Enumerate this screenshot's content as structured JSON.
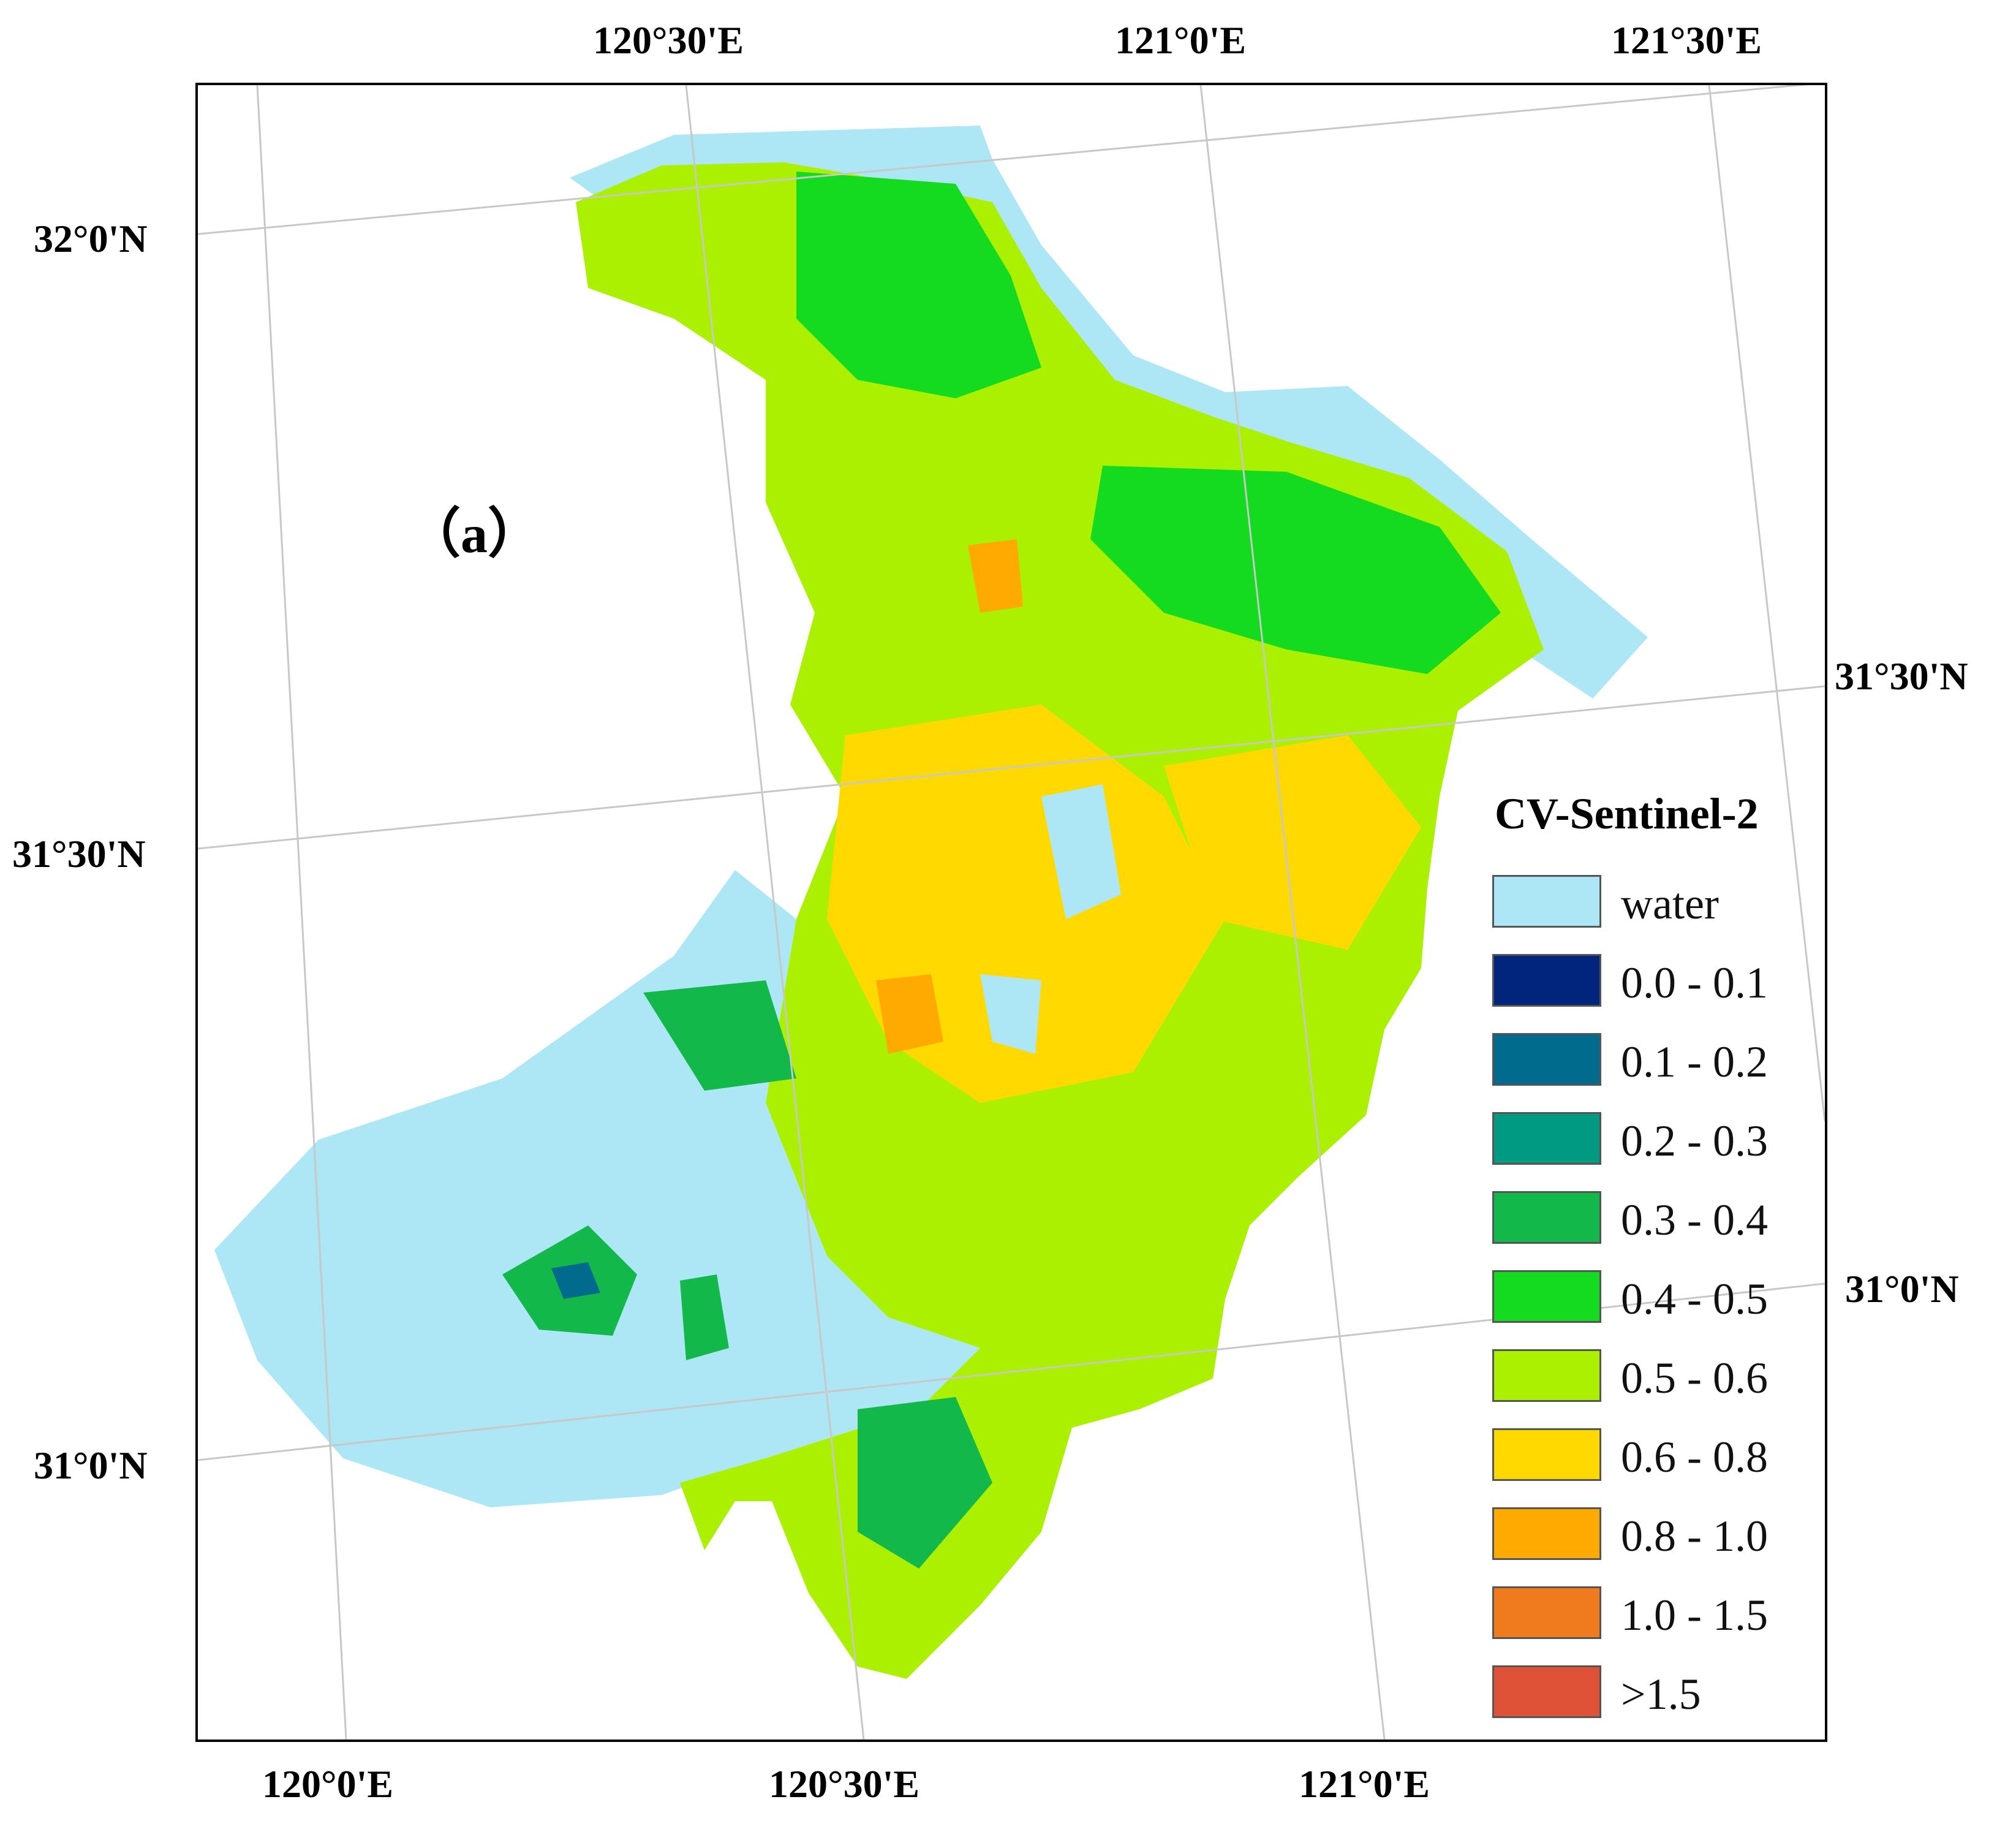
{
  "map": {
    "panel_label": "（a）",
    "top_longitudes": [
      "120°30'E",
      "121°0'E",
      "121°30'E"
    ],
    "bottom_longitudes": [
      "120°0'E",
      "120°30'E",
      "121°0'E"
    ],
    "left_latitudes": [
      "32°0'N",
      "31°30'N",
      "31°0'N"
    ],
    "right_latitudes": [
      "31°30'N",
      "31°0'N"
    ]
  },
  "legend": {
    "title": "CV-Sentinel-2",
    "items": [
      {
        "label": "water",
        "color": "#ade6f5"
      },
      {
        "label": "0.0 - 0.1",
        "color": "#00257a"
      },
      {
        "label": "0.1 - 0.2",
        "color": "#006b8c"
      },
      {
        "label": "0.2 - 0.3",
        "color": "#009a80"
      },
      {
        "label": "0.3 - 0.4",
        "color": "#12b84a"
      },
      {
        "label": "0.4 - 0.5",
        "color": "#14db20"
      },
      {
        "label": "0.5 - 0.6",
        "color": "#aaf000"
      },
      {
        "label": "0.6 - 0.8",
        "color": "#ffd900"
      },
      {
        "label": "0.8 - 1.0",
        "color": "#ffaa00"
      },
      {
        "label": "1.0 - 1.5",
        "color": "#f07a1e"
      },
      {
        "label": ">1.5",
        "color": "#e05238"
      }
    ]
  }
}
